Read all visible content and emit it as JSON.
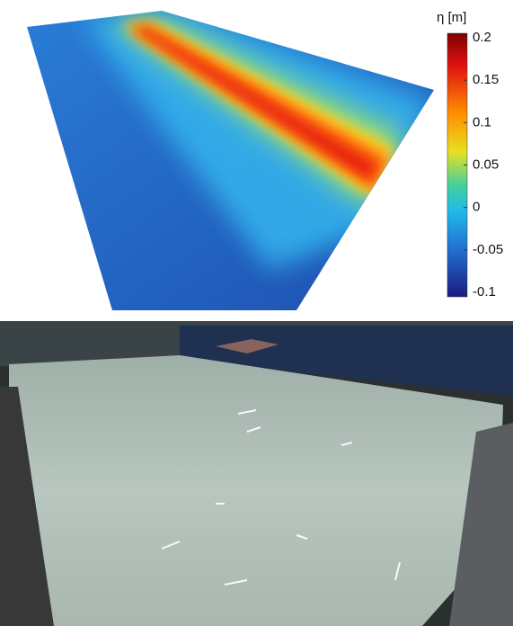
{
  "chart_data": {
    "type": "surface",
    "colorbar_label": "η [m]",
    "clim": [
      -0.1,
      0.2
    ],
    "cticks": [
      0.2,
      0.15,
      0.1,
      0.05,
      0,
      -0.05,
      -0.1
    ],
    "colormap": "jet"
  }
}
